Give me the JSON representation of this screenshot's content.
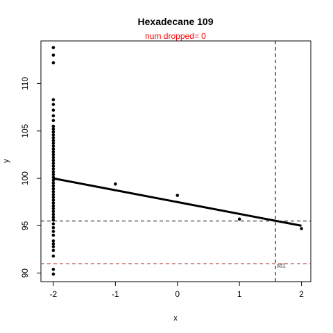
{
  "chart_data": {
    "type": "scatter",
    "title": "Hexadecane 109",
    "subtitle": "num dropped= 0",
    "xlabel": "x",
    "ylabel": "y",
    "xlim": [
      -2.2,
      2.15
    ],
    "ylim": [
      89.1,
      114.5
    ],
    "xticks": [
      -2,
      -1,
      0,
      1,
      2
    ],
    "yticks": [
      90,
      95,
      100,
      105,
      110
    ],
    "points": [
      {
        "x": -2,
        "y": 113.8
      },
      {
        "x": -2,
        "y": 113.0
      },
      {
        "x": -2,
        "y": 112.2
      },
      {
        "x": -2,
        "y": 108.3
      },
      {
        "x": -2,
        "y": 107.8
      },
      {
        "x": -2,
        "y": 107.2
      },
      {
        "x": -2,
        "y": 106.6
      },
      {
        "x": -2,
        "y": 106.1
      },
      {
        "x": -2,
        "y": 105.5
      },
      {
        "x": -2,
        "y": 105.2
      },
      {
        "x": -2,
        "y": 104.9
      },
      {
        "x": -2,
        "y": 104.6
      },
      {
        "x": -2,
        "y": 104.3
      },
      {
        "x": -2,
        "y": 104.0
      },
      {
        "x": -2,
        "y": 103.7
      },
      {
        "x": -2,
        "y": 103.4
      },
      {
        "x": -2,
        "y": 103.1
      },
      {
        "x": -2,
        "y": 102.8
      },
      {
        "x": -2,
        "y": 102.5
      },
      {
        "x": -2,
        "y": 102.2
      },
      {
        "x": -2,
        "y": 101.9
      },
      {
        "x": -2,
        "y": 101.6
      },
      {
        "x": -2,
        "y": 101.3
      },
      {
        "x": -2,
        "y": 101.0
      },
      {
        "x": -2,
        "y": 100.7
      },
      {
        "x": -2,
        "y": 100.4
      },
      {
        "x": -2,
        "y": 100.1
      },
      {
        "x": -2,
        "y": 99.8
      },
      {
        "x": -2,
        "y": 99.5
      },
      {
        "x": -2,
        "y": 99.2
      },
      {
        "x": -2,
        "y": 98.9
      },
      {
        "x": -2,
        "y": 98.6
      },
      {
        "x": -2,
        "y": 98.3
      },
      {
        "x": -2,
        "y": 98.0
      },
      {
        "x": -2,
        "y": 97.7
      },
      {
        "x": -2,
        "y": 97.4
      },
      {
        "x": -2,
        "y": 97.1
      },
      {
        "x": -2,
        "y": 96.8
      },
      {
        "x": -2,
        "y": 96.5
      },
      {
        "x": -2,
        "y": 96.2
      },
      {
        "x": -2,
        "y": 95.9
      },
      {
        "x": -2,
        "y": 95.6
      },
      {
        "x": -2,
        "y": 95.2
      },
      {
        "x": -2,
        "y": 94.8
      },
      {
        "x": -2,
        "y": 94.4
      },
      {
        "x": -2,
        "y": 94.0
      },
      {
        "x": -2,
        "y": 93.4
      },
      {
        "x": -2,
        "y": 93.1
      },
      {
        "x": -2,
        "y": 92.8
      },
      {
        "x": -2,
        "y": 92.4
      },
      {
        "x": -2,
        "y": 91.8
      },
      {
        "x": -2,
        "y": 90.4
      },
      {
        "x": -2,
        "y": 89.9
      },
      {
        "x": -1,
        "y": 99.4
      },
      {
        "x": 0,
        "y": 98.2
      },
      {
        "x": 1,
        "y": 95.7
      },
      {
        "x": 2,
        "y": 94.7
      }
    ],
    "fit_line": {
      "x": [
        -2,
        2
      ],
      "y": [
        100.0,
        95.0
      ]
    },
    "hlines": [
      {
        "y": 95.5,
        "color": "#000000",
        "style": "dashed"
      },
      {
        "y": 91.0,
        "color": "#a52a2a",
        "style": "dashed"
      }
    ],
    "vline": {
      "x": 1.58,
      "color": "#000000",
      "style": "dashed"
    },
    "annotation": {
      "text": "sd1",
      "x": 1.6,
      "y": 90.6
    },
    "grid": false,
    "colors": {
      "points": "#000000",
      "subtitle": "#ff0000",
      "hline_red": "#a52a2a"
    }
  }
}
